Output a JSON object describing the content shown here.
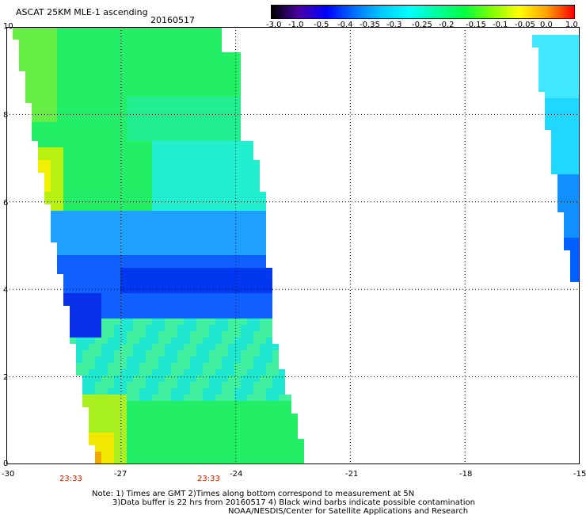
{
  "header": {
    "title": "ASCAT 25KM MLE-1 ascending",
    "date": "20160517"
  },
  "colorbar": {
    "ticks": [
      "-3.0",
      "-1.0",
      "-0.5",
      "-0.4",
      "-0.35",
      "-0.3",
      "-0.25",
      "-0.2",
      "-0.15",
      "-0.1",
      "-0.05",
      "0.0",
      "1.0"
    ],
    "colors": [
      "#000000",
      "#4b00a8",
      "#0000ff",
      "#0070ff",
      "#00c8ff",
      "#00ffff",
      "#00ffa0",
      "#00ff40",
      "#80ff00",
      "#ffff00",
      "#ffa000",
      "#ff0000"
    ]
  },
  "axes": {
    "x_ticks": [
      "-30",
      "-27",
      "-24",
      "-21",
      "-18",
      "-15"
    ],
    "y_ticks": [
      "0",
      "2",
      "4",
      "6",
      "8",
      "10"
    ],
    "x_range": [
      -30,
      -15
    ],
    "y_range": [
      0,
      10
    ],
    "grid": "dotted"
  },
  "times": [
    "23:33",
    "23:33"
  ],
  "notes": {
    "line1": "Note: 1) Times are GMT 2)Times along bottom correspond to measurement at 5N",
    "line2": "3)Data buffer is 22 hrs from 20160517 4) Black wind barbs indicate possible contamination",
    "line3": "NOAA/NESDIS/Center for Satellite Applications and Research"
  }
}
